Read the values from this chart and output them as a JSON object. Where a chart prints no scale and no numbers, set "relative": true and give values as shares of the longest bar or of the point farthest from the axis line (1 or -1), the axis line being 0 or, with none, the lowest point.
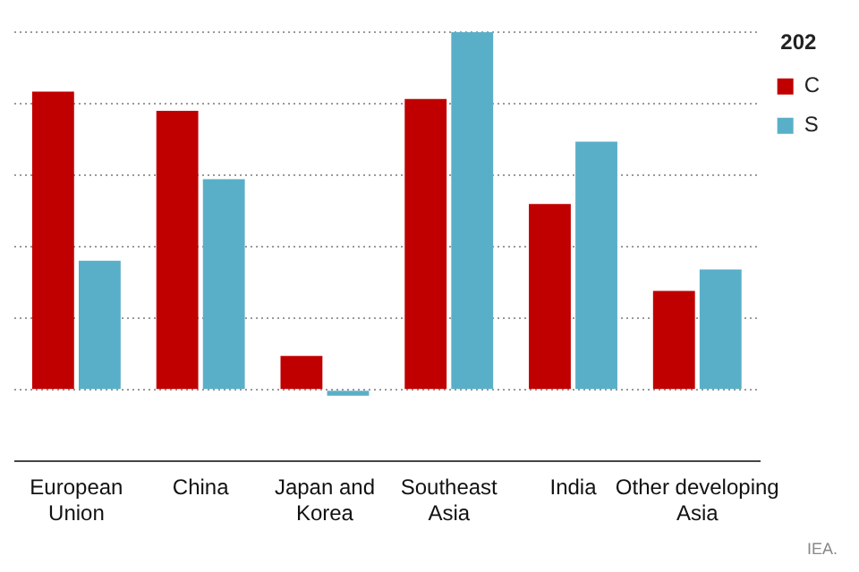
{
  "chart_data": {
    "type": "bar",
    "relative": true,
    "categories": [
      "European Union",
      "China",
      "Japan and Korea",
      "Southeast Asia",
      "India",
      "Other developing Asia"
    ],
    "series": [
      {
        "name": "C",
        "color": "#c00000",
        "values": [
          0.834,
          0.78,
          0.095,
          0.813,
          0.52,
          0.277
        ]
      },
      {
        "name": "S",
        "color": "#5aafc8",
        "values": [
          0.361,
          0.589,
          -0.016,
          1,
          0.694,
          0.337
        ]
      }
    ],
    "legend": "top right",
    "legend_title": "202",
    "grid": "y",
    "annotations": [
      "IEA."
    ]
  }
}
